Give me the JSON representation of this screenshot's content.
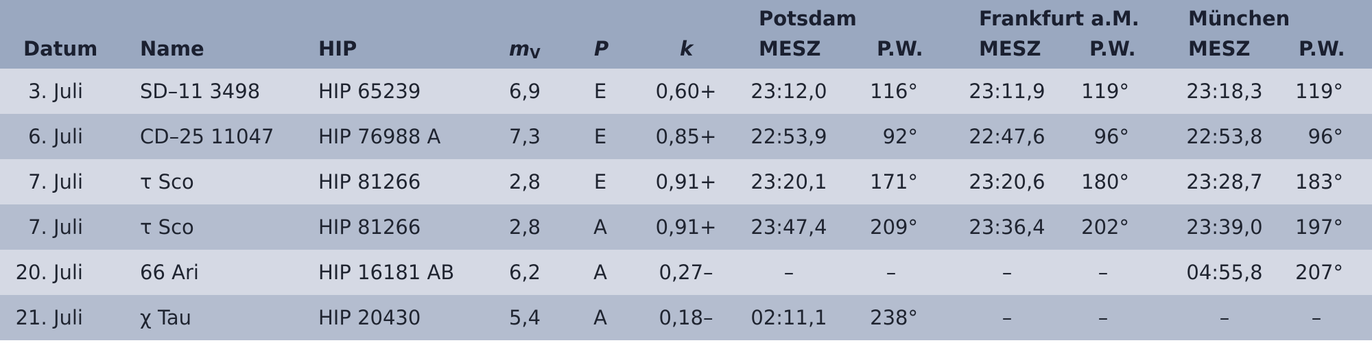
{
  "header": {
    "groups": [
      "Potsdam",
      "Frankfurt a.M.",
      "München"
    ],
    "datum": "Datum",
    "name": "Name",
    "hip": "HIP",
    "mv_base": "m",
    "mv_sub": "V",
    "p": "P",
    "k": "k",
    "mesz": "MESZ",
    "pw": "P.W."
  },
  "rows": [
    {
      "datum": "3. Juli",
      "name": "SD–11 3498",
      "hip": "HIP 65239",
      "mv": "6,9",
      "p": "E",
      "k": "0,60+",
      "pot_mesz": "23:12,0",
      "pot_pw": "116°",
      "fra_mesz": "23:11,9",
      "fra_pw": "119°",
      "mun_mesz": "23:18,3",
      "mun_pw": "119°"
    },
    {
      "datum": "6. Juli",
      "name": "CD–25 11047",
      "hip": "HIP 76988 A",
      "mv": "7,3",
      "p": "E",
      "k": "0,85+",
      "pot_mesz": "22:53,9",
      "pot_pw": "92°",
      "fra_mesz": "22:47,6",
      "fra_pw": "96°",
      "mun_mesz": "22:53,8",
      "mun_pw": "96°"
    },
    {
      "datum": "7. Juli",
      "name": "τ Sco",
      "hip": "HIP 81266",
      "mv": "2,8",
      "p": "E",
      "k": "0,91+",
      "pot_mesz": "23:20,1",
      "pot_pw": "171°",
      "fra_mesz": "23:20,6",
      "fra_pw": "180°",
      "mun_mesz": "23:28,7",
      "mun_pw": "183°"
    },
    {
      "datum": "7. Juli",
      "name": "τ Sco",
      "hip": "HIP 81266",
      "mv": "2,8",
      "p": "A",
      "k": "0,91+",
      "pot_mesz": "23:47,4",
      "pot_pw": "209°",
      "fra_mesz": "23:36,4",
      "fra_pw": "202°",
      "mun_mesz": "23:39,0",
      "mun_pw": "197°"
    },
    {
      "datum": "20. Juli",
      "name": "66 Ari",
      "hip": "HIP 16181 AB",
      "mv": "6,2",
      "p": "A",
      "k": "0,27–",
      "pot_mesz": "–",
      "pot_pw": "–",
      "fra_mesz": "–",
      "fra_pw": "–",
      "mun_mesz": "04:55,8",
      "mun_pw": "207°"
    },
    {
      "datum": "21. Juli",
      "name": "χ Tau",
      "hip": "HIP 20430",
      "mv": "5,4",
      "p": "A",
      "k": "0,18–",
      "pot_mesz": "02:11,1",
      "pot_pw": "238°",
      "fra_mesz": "–",
      "fra_pw": "–",
      "mun_mesz": "–",
      "mun_pw": "–"
    }
  ]
}
